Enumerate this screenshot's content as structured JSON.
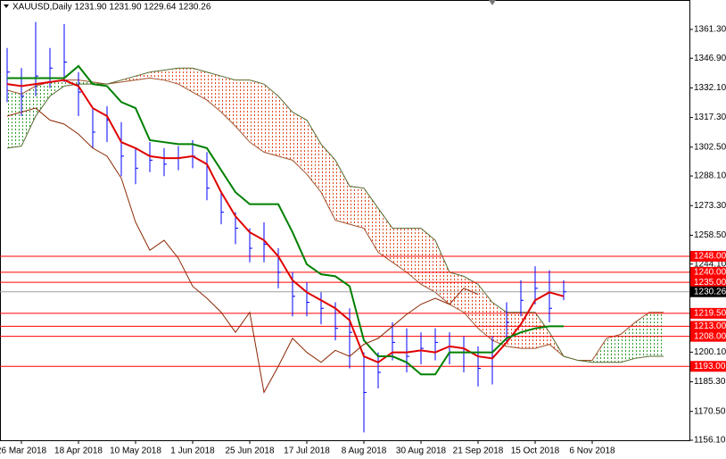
{
  "chart_data": {
    "type": "ohlc",
    "title": "XAUUSD,Daily  1231.90 1231.90 1229.64 1230.26",
    "categories": [
      null,
      "26 Mar 2018",
      null,
      null,
      null,
      "18 Apr 2018",
      null,
      null,
      null,
      "10 May 2018",
      null,
      null,
      null,
      "1 Jun 2018",
      null,
      null,
      null,
      "25 Jun 2018",
      null,
      null,
      null,
      "17 Jul 2018",
      null,
      null,
      null,
      "8 Aug 2018",
      null,
      null,
      null,
      "30 Aug 2018",
      null,
      null,
      null,
      "21 Sep 2018",
      null,
      null,
      null,
      "15 Oct 2018",
      null,
      null,
      null,
      "6 Nov 2018",
      null,
      null,
      null,
      null,
      null
    ],
    "color": "#0000ff",
    "high": [
      1352,
      1342,
      1365,
      1352,
      1364,
      1340,
      1322,
      1323,
      1315,
      1302,
      1305,
      1302,
      1303,
      1306,
      1300,
      1280,
      1270,
      1262,
      1265,
      1252,
      1240,
      1235,
      1230,
      1225,
      1222,
      1200,
      1200,
      1215,
      1212,
      1210,
      1212,
      1210,
      1208,
      1203,
      1208,
      1225,
      1236,
      1243,
      1241,
      1236,
      null,
      null,
      null,
      null,
      null,
      null,
      null
    ],
    "low": [
      1325,
      1318,
      1328,
      1332,
      1335,
      1318,
      1302,
      1305,
      1288,
      1284,
      1290,
      1288,
      1291,
      1292,
      1276,
      1264,
      1254,
      1245,
      1245,
      1232,
      1218,
      1218,
      1214,
      1206,
      1192,
      1160,
      1182,
      1196,
      1190,
      1194,
      1196,
      1194,
      1190,
      1183,
      1184,
      1205,
      1218,
      1224,
      1215,
      1226,
      null,
      null,
      null,
      null,
      null,
      null,
      null
    ],
    "close": [
      1340,
      1328,
      1338,
      1342,
      1345,
      1330,
      1310,
      1316,
      1298,
      1292,
      1296,
      1294,
      1297,
      1298,
      1282,
      1270,
      1262,
      1252,
      1254,
      1240,
      1228,
      1225,
      1222,
      1212,
      1210,
      1180,
      1190,
      1205,
      1198,
      1202,
      1205,
      1200,
      1200,
      1192,
      1198,
      1215,
      1226,
      1232,
      1222,
      1230.26,
      null,
      null,
      null,
      null,
      null,
      null,
      null
    ],
    "lines": [
      {
        "color": "#e00000",
        "values": [
          1334,
          1333,
          1334,
          1335,
          1336,
          1333,
          1322,
          1318,
          1305,
          1302,
          1298,
          1297,
          1297,
          1298,
          1294,
          1280,
          1268,
          1260,
          1256,
          1248,
          1236,
          1230,
          1226,
          1222,
          1216,
          1198,
          1195,
          1200,
          1200,
          1201,
          1200,
          1203,
          1202,
          1198,
          1197,
          1205,
          1214,
          1226,
          1230,
          1228,
          null,
          null,
          null,
          null,
          null,
          null,
          null
        ]
      },
      {
        "color": "#008000",
        "values": [
          1337,
          1337,
          1337,
          1337,
          1337,
          1343,
          1334,
          1333,
          1325,
          1322,
          1306,
          1305,
          1304,
          1304,
          1302,
          1291,
          1280,
          1274,
          1274,
          1274,
          1260,
          1244,
          1239,
          1238,
          1233,
          1206,
          1198,
          1198,
          1195,
          1189,
          1189,
          1200,
          1200,
          1200,
          1200,
          1207,
          1210,
          1212,
          1213,
          1213,
          null,
          null,
          null,
          null,
          null,
          null,
          null
        ]
      },
      {
        "color": "#8b2500",
        "values": [
          1318,
          1320,
          1322,
          1316,
          1314,
          1309,
          1302,
          1298,
          1287,
          1265,
          1251,
          1256,
          1247,
          1233,
          1227,
          1220,
          1210,
          1220,
          1180,
          1193,
          1207,
          1200,
          1195,
          1201,
          1198,
          1204,
          1207,
          1213,
          1219,
          1224,
          1227,
          1224,
          1232,
          1229,
          null,
          null,
          null,
          null,
          null,
          null,
          null,
          null,
          null,
          null,
          null,
          null,
          null
        ]
      }
    ],
    "cloud": {
      "span_a": [
        1331,
        1329,
        1333,
        1335,
        1336,
        1336,
        1335,
        1334,
        1335,
        1336,
        1337,
        1336,
        1334,
        1330,
        1326,
        1320,
        1313,
        1305,
        1300,
        1298,
        1296,
        1289,
        1280,
        1266,
        1264,
        1262,
        1250,
        1245,
        1240,
        1234,
        1230,
        1224,
        1220,
        1212,
        1206,
        1203,
        1202,
        1202,
        1204,
        1198,
        1196,
        1196,
        1207,
        1209,
        1215,
        1220,
        1220
      ],
      "span_b": [
        1302,
        1303,
        1318,
        1328,
        1333,
        1334,
        1334,
        1334,
        1336,
        1338,
        1340,
        1341,
        1342,
        1342,
        1340,
        1338,
        1336,
        1336,
        1334,
        1328,
        1320,
        1316,
        1304,
        1296,
        1283,
        1282,
        1272,
        1262,
        1262,
        1262,
        1256,
        1240,
        1238,
        1234,
        1225,
        1220,
        1220,
        1220,
        1210,
        1198,
        1196,
        1195,
        1195,
        1195,
        1197,
        1198,
        1198
      ],
      "span_a_color": "#a0522d",
      "span_b_color": "#556b2f",
      "bull_color": "#2e9b2e",
      "bear_color": "#e2461c"
    },
    "levels": [
      {
        "value": 1248,
        "label": "1248.00"
      },
      {
        "value": 1240,
        "label": "1240.00"
      },
      {
        "value": 1235,
        "label": "1235.00"
      },
      {
        "value": 1219.5,
        "label": "1219.50"
      },
      {
        "value": 1213,
        "label": "1213.00"
      },
      {
        "value": 1208,
        "label": "1208.00"
      },
      {
        "value": 1193,
        "label": "1193.00"
      }
    ],
    "level_color": "#ff0000",
    "last_price": {
      "value": 1230.26,
      "label": "1230.26"
    },
    "ylim": [
      1156.1,
      1376
    ],
    "yticks": [
      {
        "value": 1361.3,
        "label": "1361.30"
      },
      {
        "value": 1346.9,
        "label": "1346.90"
      },
      {
        "value": 1332.1,
        "label": "1332.10"
      },
      {
        "value": 1317.3,
        "label": "1317.30"
      },
      {
        "value": 1302.5,
        "label": "1302.50"
      },
      {
        "value": 1288.1,
        "label": "1288.10"
      },
      {
        "value": 1273.3,
        "label": "1273.30"
      },
      {
        "value": 1258.5,
        "label": "1258.50"
      },
      {
        "value": 1244.1,
        "label": "1244.10"
      },
      {
        "value": 1200.1,
        "label": "1200.10"
      },
      {
        "value": 1185.3,
        "label": "1185.30"
      },
      {
        "value": 1170.5,
        "label": "1170.50"
      },
      {
        "value": 1156.1,
        "label": "1156.10"
      }
    ],
    "grid": false
  }
}
